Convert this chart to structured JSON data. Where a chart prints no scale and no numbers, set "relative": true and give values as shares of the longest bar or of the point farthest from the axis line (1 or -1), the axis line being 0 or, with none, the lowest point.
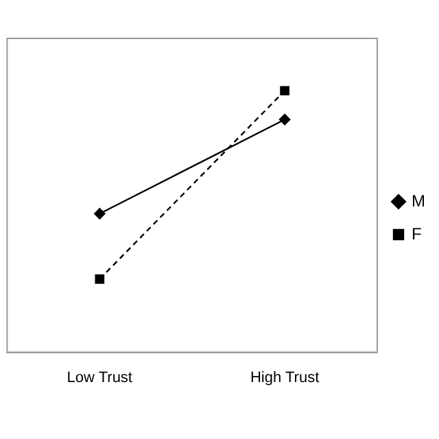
{
  "chart_data": {
    "type": "line",
    "relative": true,
    "categories": [
      "Low Trust",
      "High Trust"
    ],
    "legend": "right",
    "grid": false,
    "series": [
      {
        "name": "M",
        "color": "#000000",
        "values": [
          0.53,
          0.89
        ],
        "marker": "diamond",
        "line_style": "solid"
      },
      {
        "name": "F",
        "color": "#000000",
        "values": [
          0.28,
          1
        ],
        "marker": "square",
        "line_style": "dashed"
      }
    ]
  }
}
